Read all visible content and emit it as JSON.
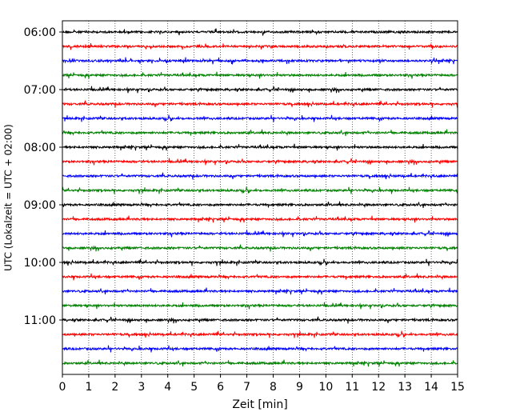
{
  "chart_data": {
    "type": "line",
    "title": "",
    "xlabel": "Zeit  [min]",
    "ylabel": "UTC (Lokalzeit = UTC + 02:00)",
    "xlim": [
      0,
      15
    ],
    "x_ticks": [
      0,
      1,
      2,
      3,
      4,
      5,
      6,
      7,
      8,
      9,
      10,
      11,
      12,
      13,
      14,
      15
    ],
    "y_ticks": [
      {
        "label": "06:00",
        "trace_index": 0
      },
      {
        "label": "07:00",
        "trace_index": 4
      },
      {
        "label": "08:00",
        "trace_index": 8
      },
      {
        "label": "09:00",
        "trace_index": 12
      },
      {
        "label": "10:00",
        "trace_index": 16
      },
      {
        "label": "11:00",
        "trace_index": 20
      }
    ],
    "trace_colors": [
      "#000000",
      "#ff0000",
      "#0000ff",
      "#008000"
    ],
    "trace_count": 24,
    "trace_duration_min": 15,
    "x_grid": "dotted vertical lines at each minute",
    "y_grid": false,
    "legend": "none"
  }
}
